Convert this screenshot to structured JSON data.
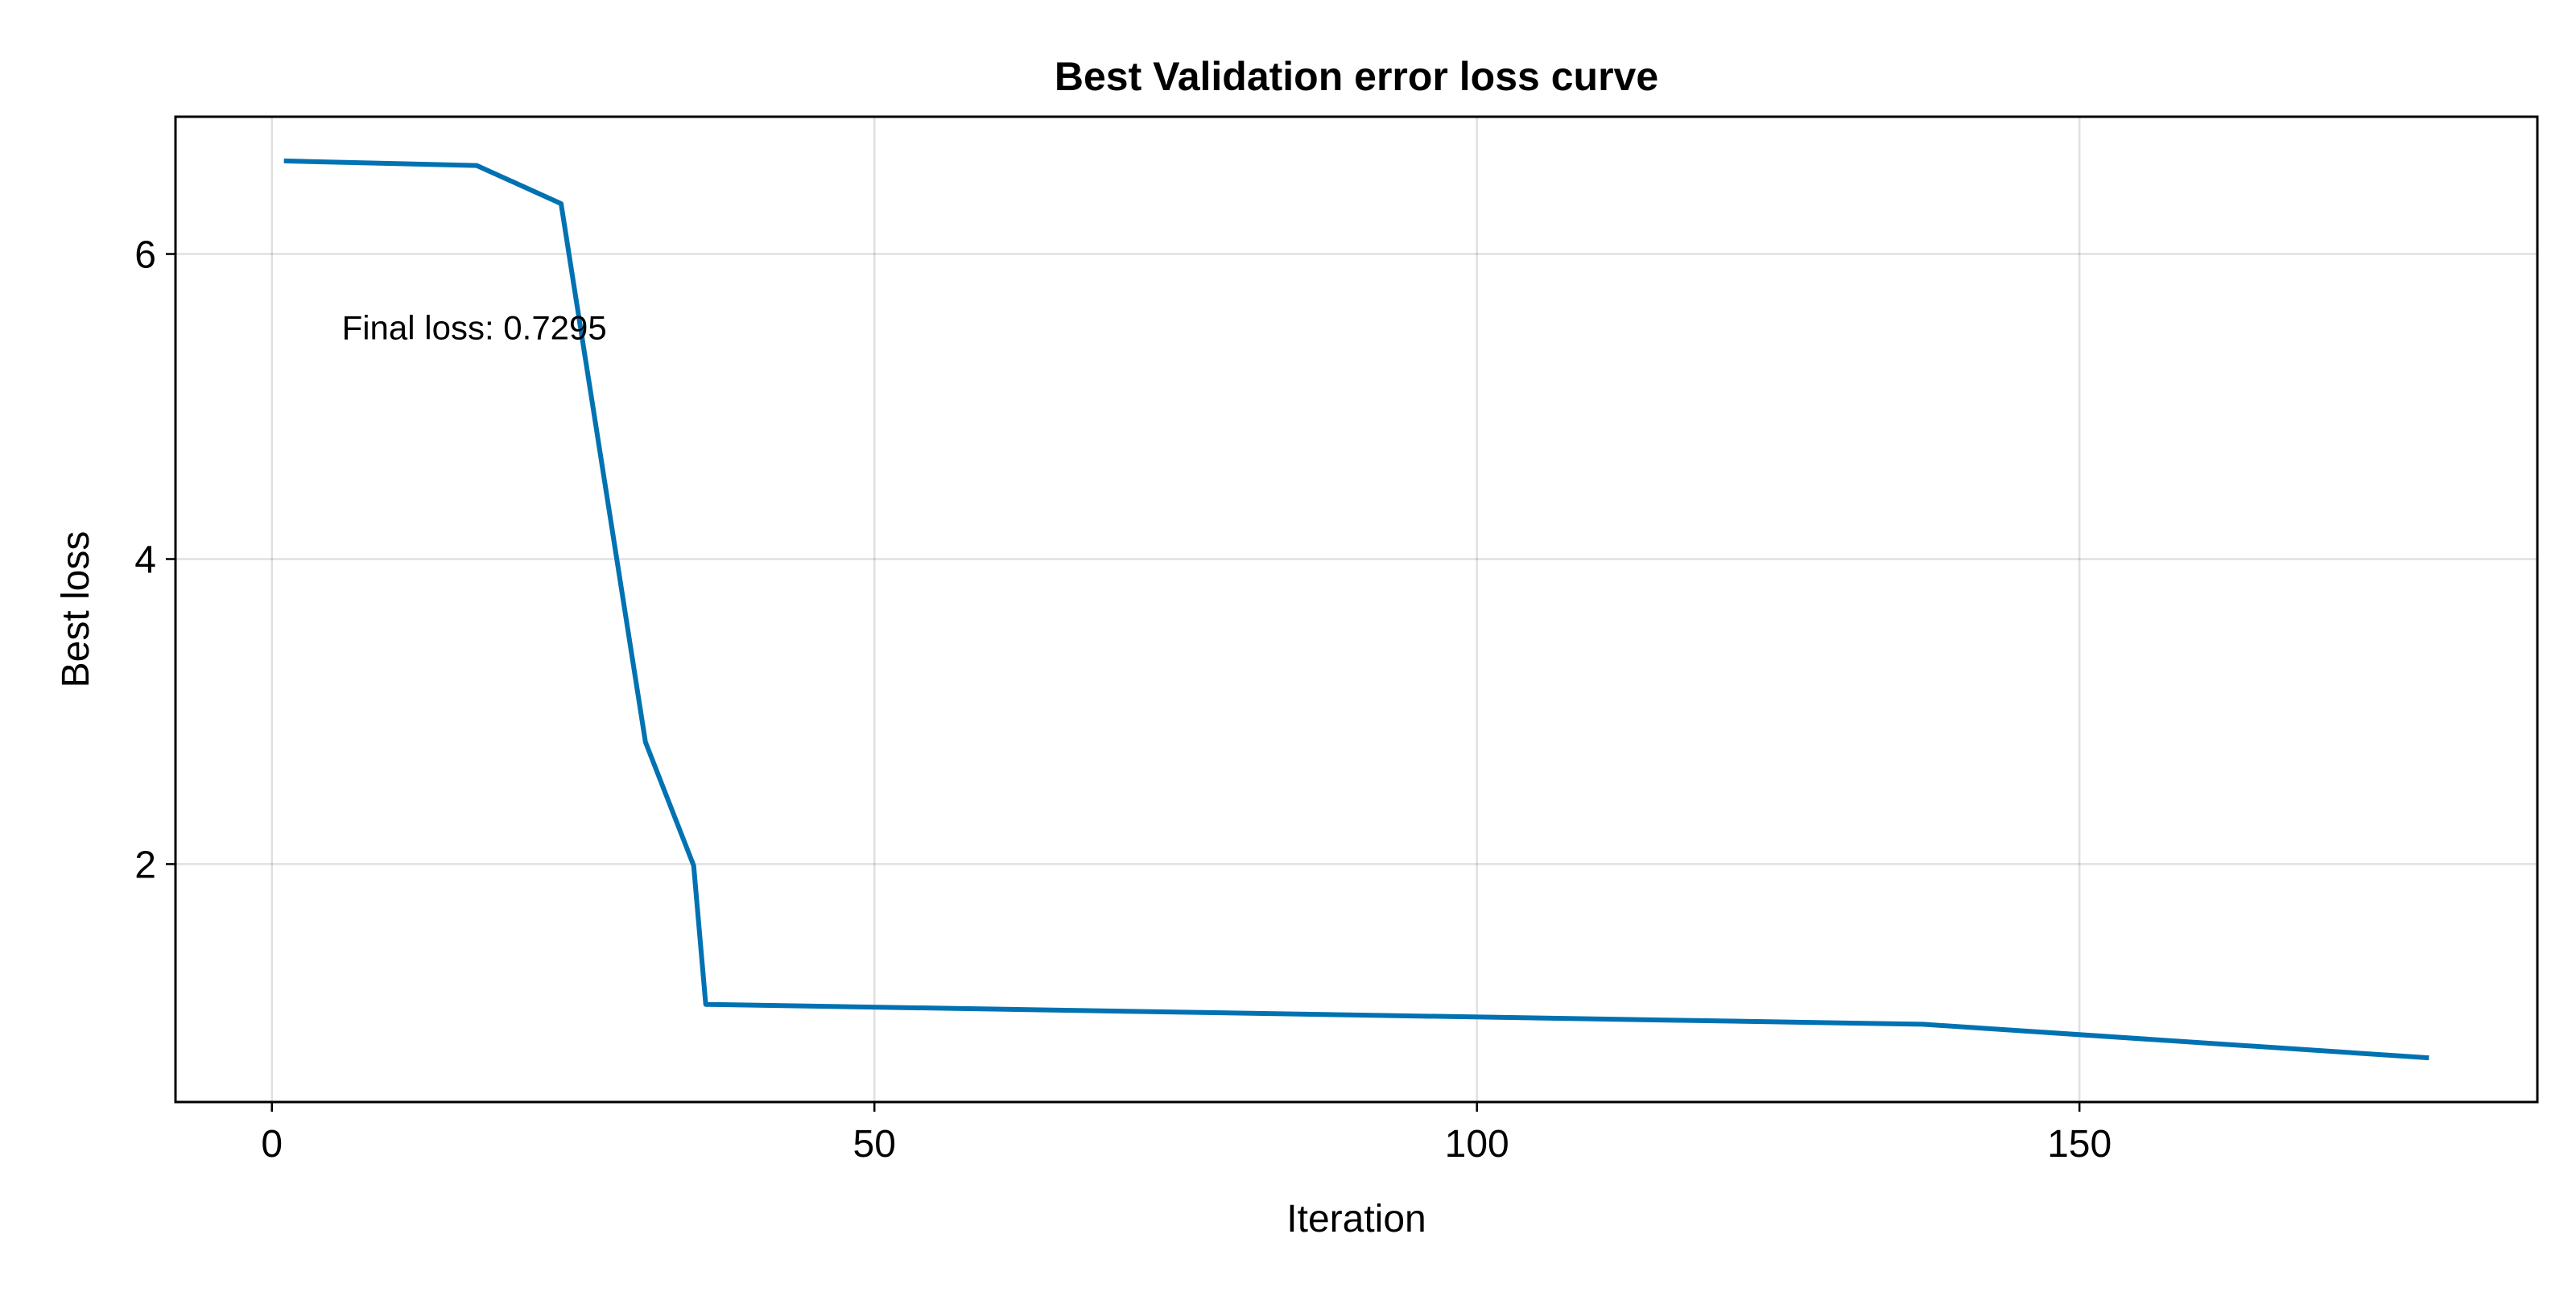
{
  "chart_data": {
    "type": "line",
    "title": "Best Validation error loss curve",
    "xlabel": "Iteration",
    "ylabel": "Best loss",
    "xlim": [
      -8,
      188
    ],
    "ylim": [
      0.44,
      6.9
    ],
    "xticks": [
      0,
      50,
      100,
      150
    ],
    "yticks": [
      2,
      4,
      6
    ],
    "grid": true,
    "legend": "none",
    "color": "#0072b2",
    "annotation": {
      "text": "Final loss: 0.7295",
      "x": 5.8,
      "y": 5.52
    },
    "series": [
      {
        "x": [
          1,
          17,
          24,
          31,
          35,
          36,
          137,
          179
        ],
        "y": [
          6.61,
          6.58,
          6.33,
          2.8,
          1.99,
          1.08,
          0.95,
          0.7295
        ]
      }
    ]
  }
}
